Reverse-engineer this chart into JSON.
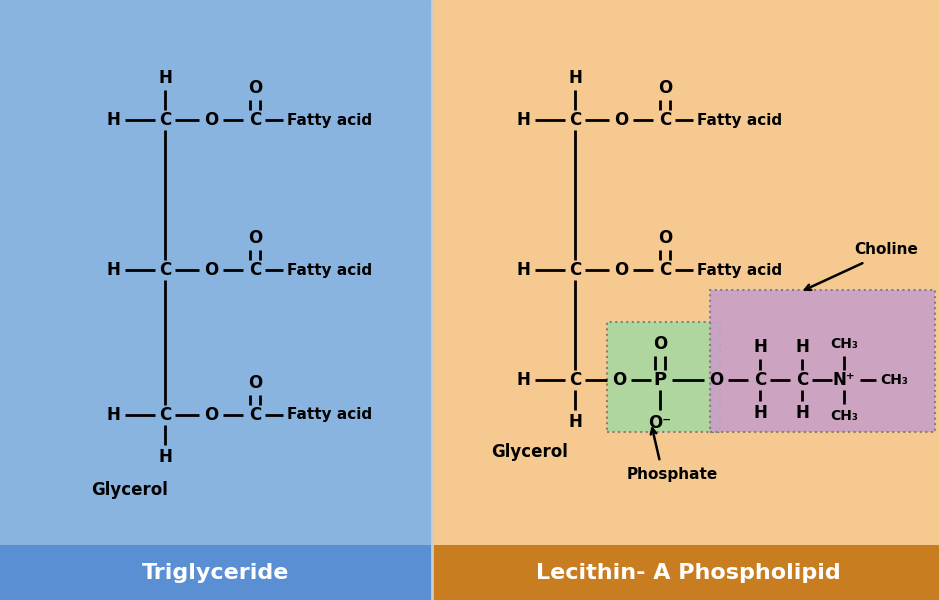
{
  "bg_left": "#8ab4e0",
  "bg_right": "#f5c990",
  "bg_left_label_color": "#5b8fd4",
  "bg_right_label_color": "#c87d20",
  "phosphate_box_color": "#a8d8a0",
  "choline_box_color": "#c8a0c8",
  "title_left": "Triglyceride",
  "title_right": "Lecithin- A Phospholipid",
  "label_glycerol_left": "Glycerol",
  "label_glycerol_right": "Glycerol",
  "label_phosphate": "Phosphate",
  "label_choline": "Choline",
  "fig_width": 9.39,
  "fig_height": 6.0,
  "dpi": 100
}
